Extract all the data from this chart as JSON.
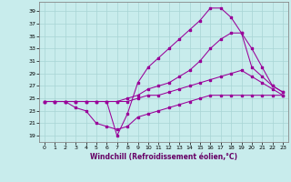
{
  "xlabel": "Windchill (Refroidissement éolien,°C)",
  "bg_color": "#c8ecec",
  "grid_color": "#a8d4d4",
  "line_color": "#990099",
  "x_ticks": [
    0,
    1,
    2,
    3,
    4,
    5,
    6,
    7,
    8,
    9,
    10,
    11,
    12,
    13,
    14,
    15,
    16,
    17,
    18,
    19,
    20,
    21,
    22,
    23
  ],
  "y_ticks": [
    19,
    21,
    23,
    25,
    27,
    29,
    31,
    33,
    35,
    37,
    39
  ],
  "ylim": [
    18.0,
    40.5
  ],
  "xlim": [
    -0.5,
    23.5
  ],
  "line1_x": [
    0,
    1,
    2,
    3,
    4,
    5,
    6,
    7,
    8,
    9,
    10,
    11,
    12,
    13,
    14,
    15,
    16,
    17,
    18,
    19,
    20,
    21,
    22,
    23
  ],
  "line1_y": [
    24.5,
    24.5,
    24.5,
    23.5,
    23.0,
    21.0,
    20.5,
    20.0,
    20.5,
    22.0,
    22.5,
    23.0,
    23.5,
    24.0,
    24.5,
    25.0,
    25.5,
    25.5,
    25.5,
    25.5,
    25.5,
    25.5,
    25.5,
    25.5
  ],
  "line2_x": [
    0,
    1,
    2,
    3,
    4,
    5,
    6,
    7,
    8,
    9,
    10,
    11,
    12,
    13,
    14,
    15,
    16,
    17,
    18,
    19,
    20,
    21,
    22,
    23
  ],
  "line2_y": [
    24.5,
    24.5,
    24.5,
    24.5,
    24.5,
    24.5,
    24.5,
    19.0,
    22.5,
    27.5,
    30.0,
    31.5,
    33.0,
    34.5,
    36.0,
    37.5,
    39.5,
    39.5,
    38.0,
    35.5,
    30.0,
    28.5,
    27.0,
    26.0
  ],
  "line3_x": [
    0,
    1,
    2,
    3,
    4,
    5,
    6,
    7,
    8,
    9,
    10,
    11,
    12,
    13,
    14,
    15,
    16,
    17,
    18,
    19,
    20,
    21,
    22,
    23
  ],
  "line3_y": [
    24.5,
    24.5,
    24.5,
    24.5,
    24.5,
    24.5,
    24.5,
    24.5,
    25.0,
    25.5,
    26.5,
    27.0,
    27.5,
    28.5,
    29.5,
    31.0,
    33.0,
    34.5,
    35.5,
    35.5,
    33.0,
    30.0,
    27.0,
    26.0
  ],
  "line4_x": [
    0,
    1,
    2,
    3,
    4,
    5,
    6,
    7,
    8,
    9,
    10,
    11,
    12,
    13,
    14,
    15,
    16,
    17,
    18,
    19,
    20,
    21,
    22,
    23
  ],
  "line4_y": [
    24.5,
    24.5,
    24.5,
    24.5,
    24.5,
    24.5,
    24.5,
    24.5,
    24.5,
    25.0,
    25.5,
    25.5,
    26.0,
    26.5,
    27.0,
    27.5,
    28.0,
    28.5,
    29.0,
    29.5,
    28.5,
    27.5,
    26.5,
    25.5
  ]
}
